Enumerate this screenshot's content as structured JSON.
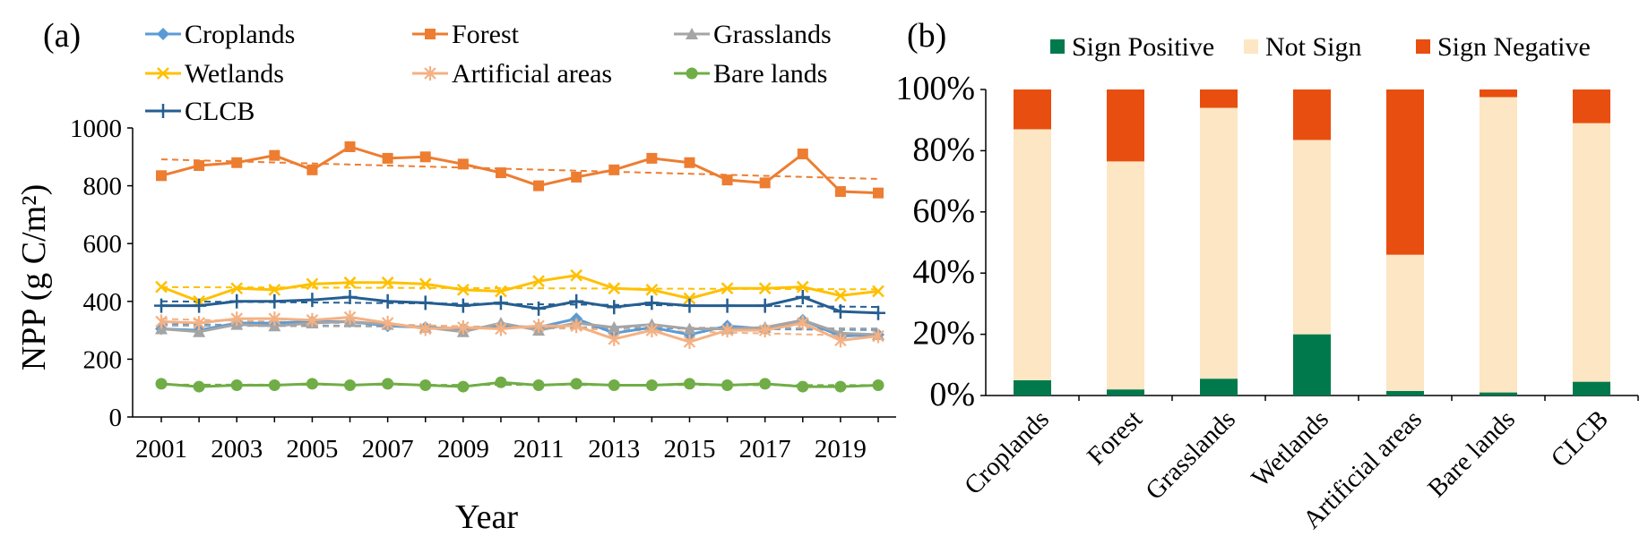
{
  "chart_data": [
    {
      "type": "line",
      "panel_label": "(a)",
      "xlabel": "Year",
      "ylabel": "NPP (g C/m²)",
      "ylim": [
        0,
        1000
      ],
      "yticks": [
        "0",
        "200",
        "400",
        "600",
        "800",
        "1000"
      ],
      "xtick_labels": [
        "2001",
        "2003",
        "2005",
        "2007",
        "2009",
        "2011",
        "2013",
        "2015",
        "2017",
        "2019"
      ],
      "x": [
        2001,
        2002,
        2003,
        2004,
        2005,
        2006,
        2007,
        2008,
        2009,
        2010,
        2011,
        2012,
        2013,
        2014,
        2015,
        2016,
        2017,
        2018,
        2019,
        2020
      ],
      "legend_position": "top",
      "trendlines": "dashed linear trend per series",
      "series": [
        {
          "name": "Croplands",
          "color": "#5b9bd5",
          "marker": "diamond",
          "values": [
            305,
            300,
            325,
            325,
            330,
            330,
            315,
            310,
            305,
            315,
            310,
            340,
            290,
            310,
            285,
            315,
            305,
            335,
            280,
            285
          ]
        },
        {
          "name": "Forest",
          "color": "#ed7d31",
          "marker": "square",
          "values": [
            835,
            870,
            880,
            905,
            855,
            935,
            895,
            900,
            875,
            845,
            800,
            830,
            855,
            895,
            880,
            820,
            810,
            910,
            780,
            775
          ]
        },
        {
          "name": "Grasslands",
          "color": "#a5a5a5",
          "marker": "triangle",
          "values": [
            305,
            295,
            320,
            315,
            325,
            330,
            320,
            310,
            295,
            325,
            300,
            325,
            310,
            320,
            305,
            305,
            310,
            335,
            290,
            285
          ]
        },
        {
          "name": "Wetlands",
          "color": "#ffc000",
          "marker": "x",
          "values": [
            450,
            400,
            445,
            440,
            460,
            465,
            465,
            460,
            440,
            435,
            470,
            490,
            445,
            440,
            410,
            445,
            445,
            450,
            420,
            435
          ]
        },
        {
          "name": "Artificial areas",
          "color": "#f4b183",
          "marker": "star",
          "values": [
            330,
            325,
            340,
            340,
            335,
            345,
            325,
            305,
            310,
            305,
            315,
            315,
            270,
            300,
            260,
            300,
            300,
            325,
            265,
            280
          ]
        },
        {
          "name": "Bare lands",
          "color": "#70ad47",
          "marker": "circle",
          "values": [
            115,
            105,
            110,
            110,
            115,
            110,
            115,
            110,
            105,
            120,
            110,
            115,
            110,
            110,
            115,
            110,
            115,
            105,
            105,
            110
          ]
        },
        {
          "name": "CLCB",
          "color": "#255e91",
          "marker": "plus",
          "values": [
            385,
            385,
            400,
            400,
            405,
            415,
            400,
            395,
            385,
            395,
            375,
            400,
            380,
            395,
            385,
            385,
            385,
            415,
            365,
            360
          ]
        }
      ]
    },
    {
      "type": "bar",
      "stacked": true,
      "panel_label": "(b)",
      "ylim": [
        0,
        100
      ],
      "yticks": [
        "0%",
        "20%",
        "40%",
        "60%",
        "80%",
        "100%"
      ],
      "categories": [
        "Croplands",
        "Forest",
        "Grasslands",
        "Wetlands",
        "Artificial areas",
        "Bare lands",
        "CLCB"
      ],
      "legend_position": "top",
      "series": [
        {
          "name": "Sign Positive",
          "color": "#007a4d",
          "values": [
            5,
            2,
            5.5,
            20,
            1.5,
            1,
            4.5
          ]
        },
        {
          "name": "Not Sign",
          "color": "#fce6c3",
          "values": [
            82,
            74.5,
            88.5,
            63.5,
            44.5,
            96.5,
            84.5
          ]
        },
        {
          "name": "Sign Negative",
          "color": "#e84e0f",
          "values": [
            13,
            23.5,
            6,
            16.5,
            54,
            2.5,
            11
          ]
        }
      ]
    }
  ]
}
